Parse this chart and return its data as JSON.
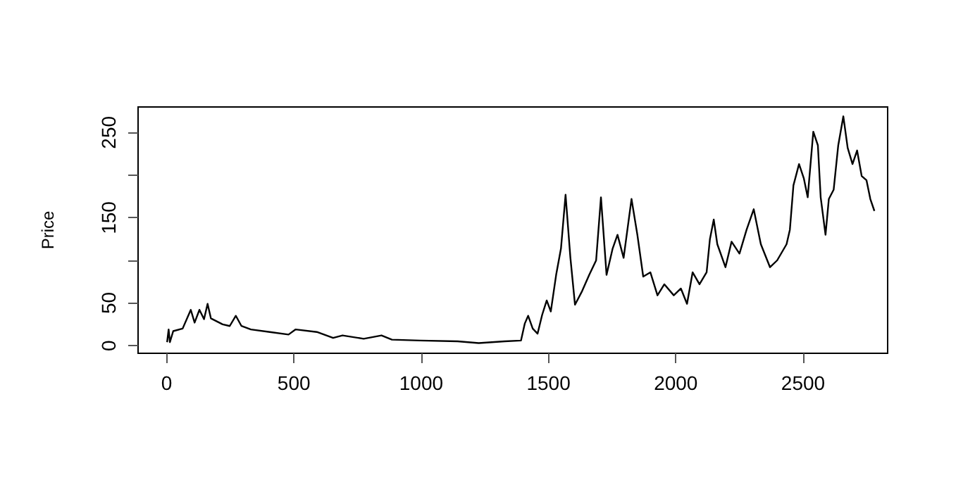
{
  "chart_data": {
    "type": "line",
    "ylabel": "Price",
    "color": "#000000",
    "x": [
      2,
      8,
      13,
      26,
      63,
      95,
      110,
      129,
      147,
      161,
      174,
      220,
      248,
      272,
      294,
      331,
      405,
      479,
      507,
      590,
      654,
      691,
      774,
      844,
      885,
      996,
      1143,
      1226,
      1328,
      1392,
      1407,
      1420,
      1438,
      1457,
      1475,
      1493,
      1509,
      1530,
      1549,
      1567,
      1586,
      1604,
      1632,
      1660,
      1687,
      1706,
      1728,
      1752,
      1771,
      1795,
      1826,
      1849,
      1872,
      1900,
      1928,
      1955,
      1992,
      2020,
      2044,
      2066,
      2093,
      2121,
      2134,
      2149,
      2163,
      2195,
      2219,
      2250,
      2278,
      2306,
      2334,
      2370,
      2398,
      2435,
      2448,
      2462,
      2484,
      2503,
      2518,
      2540,
      2558,
      2569,
      2588,
      2601,
      2620,
      2638,
      2658,
      2675,
      2694,
      2712,
      2730,
      2749,
      2764,
      2780
    ],
    "values": [
      4,
      19,
      4,
      17,
      20,
      42,
      27,
      42,
      31,
      49,
      32,
      25,
      23,
      35,
      23,
      19,
      16,
      13,
      19,
      16,
      9,
      12,
      8,
      12,
      7,
      6,
      5,
      3,
      5,
      6,
      26,
      35,
      20,
      14,
      36,
      53,
      40,
      83,
      114,
      177,
      103,
      48,
      64,
      83,
      100,
      174,
      83,
      114,
      130,
      103,
      172,
      130,
      81,
      86,
      59,
      72,
      59,
      67,
      49,
      86,
      72,
      86,
      125,
      148,
      119,
      92,
      122,
      108,
      136,
      160,
      119,
      92,
      100,
      119,
      136,
      188,
      213,
      196,
      174,
      251,
      235,
      174,
      130,
      172,
      183,
      235,
      269,
      232,
      213,
      229,
      199,
      194,
      172,
      158
    ],
    "xlim": [
      -112,
      2832
    ],
    "ylim": [
      -9,
      280
    ],
    "xticks": [
      0,
      500,
      1000,
      1500,
      2000,
      2500
    ],
    "yticks": [
      0,
      50,
      {
        "value": 100,
        "label": null
      },
      150,
      {
        "value": 200,
        "label": null
      },
      250
    ],
    "grid": false,
    "marker": "none",
    "line_style": "solid"
  }
}
